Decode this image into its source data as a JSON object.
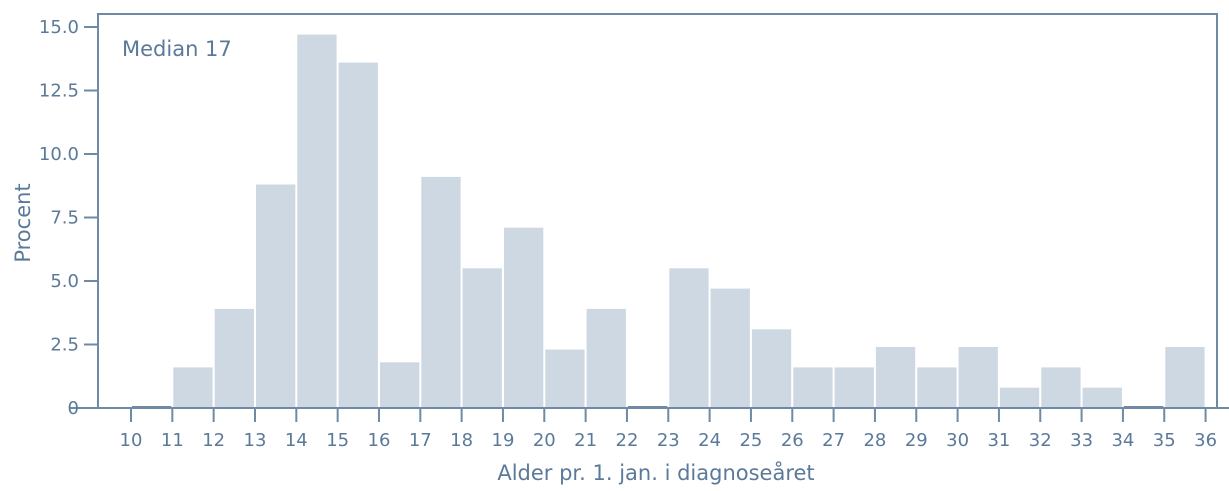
{
  "chart_data": {
    "type": "bar",
    "categories": [
      "10",
      "11",
      "12",
      "13",
      "14",
      "15",
      "16",
      "17",
      "18",
      "19",
      "20",
      "21",
      "22",
      "23",
      "24",
      "25",
      "26",
      "27",
      "28",
      "29",
      "30",
      "31",
      "32",
      "33",
      "34",
      "35"
    ],
    "values": [
      0,
      1.6,
      3.9,
      8.8,
      14.7,
      13.6,
      1.8,
      9.1,
      5.5,
      7.1,
      2.3,
      3.9,
      0,
      5.5,
      4.7,
      3.1,
      1.6,
      1.6,
      2.4,
      1.6,
      2.4,
      0.8,
      1.6,
      0.8,
      0,
      2.4
    ],
    "x_tick_labels": [
      "10",
      "11",
      "12",
      "13",
      "14",
      "15",
      "16",
      "17",
      "18",
      "19",
      "20",
      "21",
      "22",
      "23",
      "24",
      "25",
      "26",
      "27",
      "28",
      "29",
      "30",
      "31",
      "32",
      "33",
      "34",
      "35",
      "36"
    ],
    "y_tick_labels": [
      "0",
      "2.5",
      "5.0",
      "7.5",
      "10.0",
      "12.5",
      "15.0"
    ],
    "y_ticks": [
      0,
      2.5,
      5,
      7.5,
      10,
      12.5,
      15
    ],
    "ylim": [
      0,
      15
    ],
    "xlim": [
      10,
      36
    ],
    "xlabel": "Alder pr. 1. jan. i diagnoseåret",
    "ylabel": "Procent",
    "annotation": "Median 17",
    "grid": false,
    "colors": {
      "bar": "#cdd8e2",
      "axis": "#6f8aa5",
      "text": "#5b7a99"
    }
  }
}
